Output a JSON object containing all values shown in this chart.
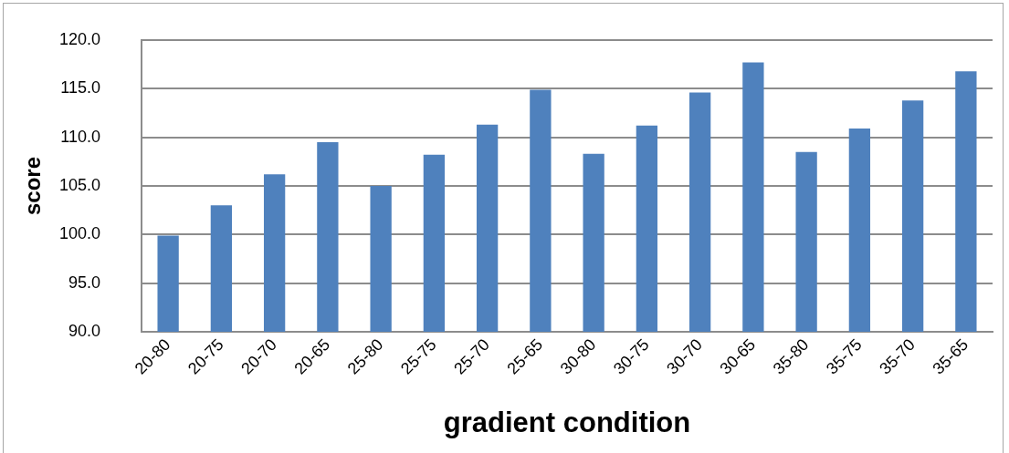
{
  "chart_data": {
    "type": "bar",
    "xlabel": "gradient condition",
    "ylabel": "score",
    "categories": [
      "20-80",
      "20-75",
      "20-70",
      "20-65",
      "25-80",
      "25-75",
      "25-70",
      "25-65",
      "30-80",
      "30-75",
      "30-70",
      "30-65",
      "35-80",
      "35-75",
      "35-70",
      "35-65"
    ],
    "values": [
      99.9,
      103.0,
      106.2,
      109.5,
      105.0,
      108.2,
      111.3,
      114.9,
      108.3,
      111.2,
      114.6,
      117.7,
      108.5,
      110.9,
      113.8,
      116.8
    ],
    "color": "#4f81bd",
    "ylim": [
      90,
      120
    ],
    "yticks": [
      {
        "value": 90,
        "label": "90.0"
      },
      {
        "value": 95,
        "label": "95.0"
      },
      {
        "value": 100,
        "label": "100.0"
      },
      {
        "value": 105,
        "label": "105.0"
      },
      {
        "value": 110,
        "label": "110.0"
      },
      {
        "value": 115,
        "label": "115.0"
      },
      {
        "value": 120,
        "label": "120.0"
      }
    ],
    "grid": "y",
    "legend": false
  }
}
